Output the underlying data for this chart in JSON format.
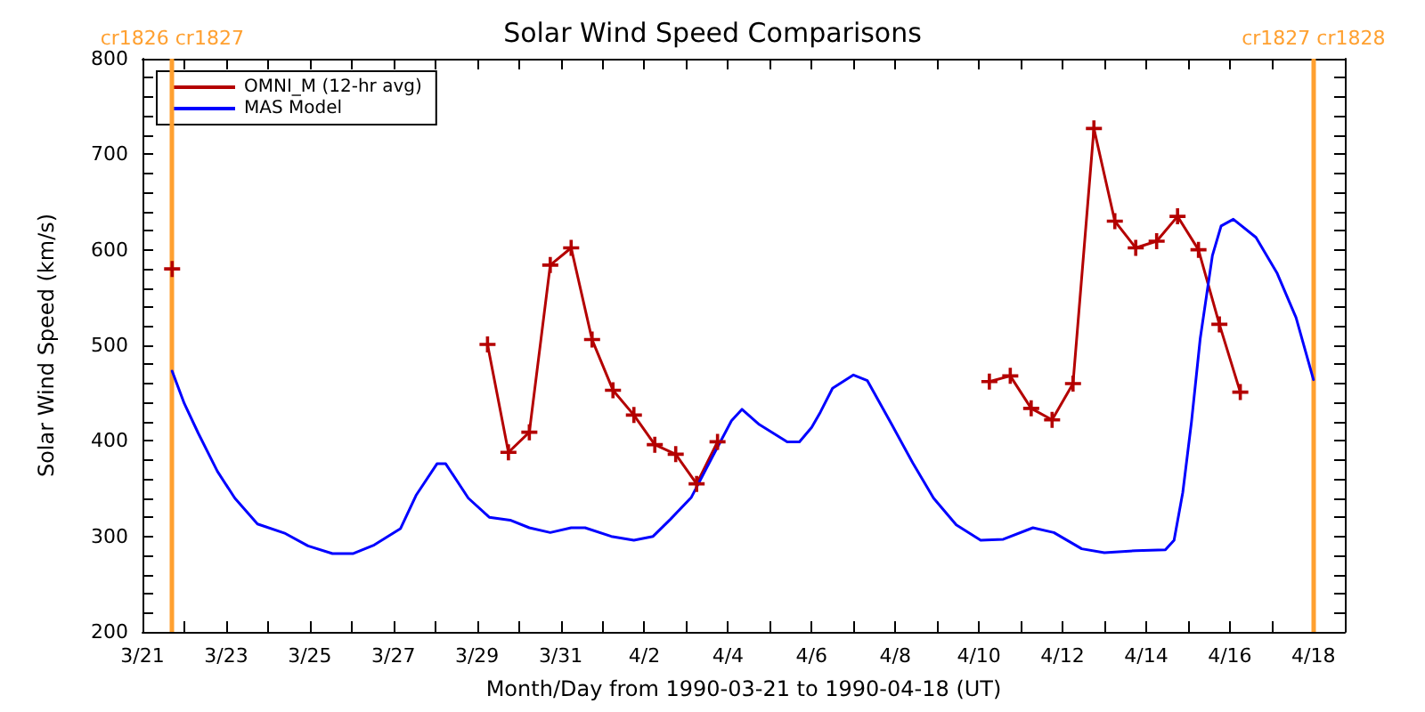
{
  "chart_data": {
    "type": "line",
    "title": "Solar Wind Speed Comparisons",
    "xlabel": "Month/Day from 1990-03-21 to 1990-04-18 (UT)",
    "ylabel": "Solar Wind Speed (km/s)",
    "xlim": [
      "1990-03-21T00:00",
      "1990-04-18T18:00"
    ],
    "xticks": [
      {
        "value": "1990-03-21",
        "label": "3/21"
      },
      {
        "value": "1990-03-22",
        "label": null
      },
      {
        "value": "1990-03-23",
        "label": "3/23"
      },
      {
        "value": "1990-03-24",
        "label": null
      },
      {
        "value": "1990-03-25",
        "label": "3/25"
      },
      {
        "value": "1990-03-26",
        "label": null
      },
      {
        "value": "1990-03-27",
        "label": "3/27"
      },
      {
        "value": "1990-03-28",
        "label": null
      },
      {
        "value": "1990-03-29",
        "label": "3/29"
      },
      {
        "value": "1990-03-30",
        "label": null
      },
      {
        "value": "1990-03-31",
        "label": "3/31"
      },
      {
        "value": "1990-04-01",
        "label": null
      },
      {
        "value": "1990-04-02",
        "label": "4/2"
      },
      {
        "value": "1990-04-03",
        "label": null
      },
      {
        "value": "1990-04-04",
        "label": "4/4"
      },
      {
        "value": "1990-04-05",
        "label": null
      },
      {
        "value": "1990-04-06",
        "label": "4/6"
      },
      {
        "value": "1990-04-07",
        "label": null
      },
      {
        "value": "1990-04-08",
        "label": "4/8"
      },
      {
        "value": "1990-04-09",
        "label": null
      },
      {
        "value": "1990-04-10",
        "label": "4/10"
      },
      {
        "value": "1990-04-11",
        "label": null
      },
      {
        "value": "1990-04-12",
        "label": "4/12"
      },
      {
        "value": "1990-04-13",
        "label": null
      },
      {
        "value": "1990-04-14",
        "label": "4/14"
      },
      {
        "value": "1990-04-15",
        "label": null
      },
      {
        "value": "1990-04-16",
        "label": "4/16"
      },
      {
        "value": "1990-04-17",
        "label": null
      },
      {
        "value": "1990-04-18",
        "label": "4/18"
      }
    ],
    "ylim": [
      200,
      800
    ],
    "yticks": [
      200,
      {
        "value": 220,
        "label": null
      },
      {
        "value": 240,
        "label": null
      },
      {
        "value": 260,
        "label": null
      },
      {
        "value": 280,
        "label": null
      },
      300,
      {
        "value": 320,
        "label": null
      },
      {
        "value": 340,
        "label": null
      },
      {
        "value": 360,
        "label": null
      },
      {
        "value": 380,
        "label": null
      },
      400,
      {
        "value": 420,
        "label": null
      },
      {
        "value": 440,
        "label": null
      },
      {
        "value": 460,
        "label": null
      },
      {
        "value": 480,
        "label": null
      },
      500,
      {
        "value": 520,
        "label": null
      },
      {
        "value": 540,
        "label": null
      },
      {
        "value": 560,
        "label": null
      },
      {
        "value": 580,
        "label": null
      },
      600,
      {
        "value": 620,
        "label": null
      },
      {
        "value": 640,
        "label": null
      },
      {
        "value": 660,
        "label": null
      },
      {
        "value": 680,
        "label": null
      },
      700,
      {
        "value": 720,
        "label": null
      },
      {
        "value": 740,
        "label": null
      },
      {
        "value": 760,
        "label": null
      },
      {
        "value": 780,
        "label": null
      },
      800
    ],
    "grid": false,
    "legend": "top left",
    "ref_lines": [
      {
        "axis": "x",
        "value": "1990-03-21T17:00",
        "label": "cr1826 cr1827",
        "color": "#ffa030"
      },
      {
        "axis": "x",
        "value": "1990-04-18T00:00",
        "label": "cr1827 cr1828",
        "color": "#ffa030"
      }
    ],
    "series": [
      {
        "name": "OMNI_M (12-hr avg)",
        "color": "#b40000",
        "marker": "cross",
        "x": [
          "1990-03-21T17:00",
          "1990-03-25T12:00",
          "1990-03-29T06:00",
          "1990-03-29T18:00",
          "1990-03-30T06:00",
          "1990-03-30T18:00",
          "1990-03-31T06:00",
          "1990-03-31T18:00",
          "1990-04-01T06:00",
          "1990-04-01T18:00",
          "1990-04-02T06:00",
          "1990-04-02T18:00",
          "1990-04-03T06:00",
          "1990-04-03T18:00",
          "1990-04-07T00:00",
          "1990-04-10T06:00",
          "1990-04-10T18:00",
          "1990-04-11T06:00",
          "1990-04-11T18:00",
          "1990-04-12T06:00",
          "1990-04-12T18:00",
          "1990-04-13T06:00",
          "1990-04-13T18:00",
          "1990-04-14T06:00",
          "1990-04-14T18:00",
          "1990-04-15T06:00",
          "1990-04-15T18:00",
          "1990-04-16T06:00"
        ],
        "values": [
          580,
          null,
          501,
          388,
          409,
          584,
          602,
          506,
          453,
          427,
          396,
          386,
          355,
          399,
          null,
          462,
          468,
          434,
          422,
          460,
          727,
          630,
          602,
          609,
          635,
          600,
          522,
          451
        ]
      },
      {
        "name": "MAS Model",
        "color": "#0000ff",
        "marker": "none",
        "x": [
          "1990-03-21T17:00",
          "1990-03-22T00:00",
          "1990-03-22T08:00",
          "1990-03-22T19:00",
          "1990-03-23T05:00",
          "1990-03-23T18:00",
          "1990-03-24T10:00",
          "1990-03-24T23:00",
          "1990-03-25T13:00",
          "1990-03-26T01:00",
          "1990-03-26T13:00",
          "1990-03-27T04:00",
          "1990-03-27T13:00",
          "1990-03-28T01:00",
          "1990-03-28T06:00",
          "1990-03-28T19:00",
          "1990-03-29T07:00",
          "1990-03-29T19:00",
          "1990-03-30T06:00",
          "1990-03-30T18:00",
          "1990-03-31T06:00",
          "1990-03-31T14:00",
          "1990-04-01T05:00",
          "1990-04-01T18:00",
          "1990-04-02T05:00",
          "1990-04-02T15:00",
          "1990-04-03T03:00",
          "1990-04-03T15:00",
          "1990-04-04T02:00",
          "1990-04-04T08:00",
          "1990-04-04T18:00",
          "1990-04-05T10:00",
          "1990-04-05T17:00",
          "1990-04-06T00:00",
          "1990-04-06T05:00",
          "1990-04-06T12:00",
          "1990-04-07T00:00",
          "1990-04-07T08:00",
          "1990-04-07T22:00",
          "1990-04-08T10:00",
          "1990-04-08T22:00",
          "1990-04-09T11:00",
          "1990-04-10T01:00",
          "1990-04-10T14:00",
          "1990-04-11T07:00",
          "1990-04-11T19:00",
          "1990-04-12T11:00",
          "1990-04-13T00:00",
          "1990-04-13T18:00",
          "1990-04-14T11:00",
          "1990-04-14T16:00",
          "1990-04-14T21:00",
          "1990-04-15T02:00",
          "1990-04-15T07:00",
          "1990-04-15T14:00",
          "1990-04-15T19:00",
          "1990-04-16T02:00",
          "1990-04-16T15:00",
          "1990-04-17T03:00",
          "1990-04-17T14:00",
          "1990-04-18T00:00"
        ],
        "values": [
          473,
          439,
          408,
          368,
          340,
          313,
          303,
          290,
          282,
          282,
          291,
          308,
          343,
          376,
          376,
          340,
          320,
          317,
          309,
          304,
          309,
          309,
          300,
          296,
          300,
          318,
          341,
          383,
          421,
          433,
          417,
          399,
          399,
          414,
          430,
          455,
          469,
          463,
          417,
          377,
          340,
          312,
          296,
          297,
          309,
          304,
          287,
          283,
          285,
          286,
          296,
          346,
          420,
          507,
          594,
          625,
          632,
          613,
          576,
          529,
          464
        ]
      }
    ]
  }
}
